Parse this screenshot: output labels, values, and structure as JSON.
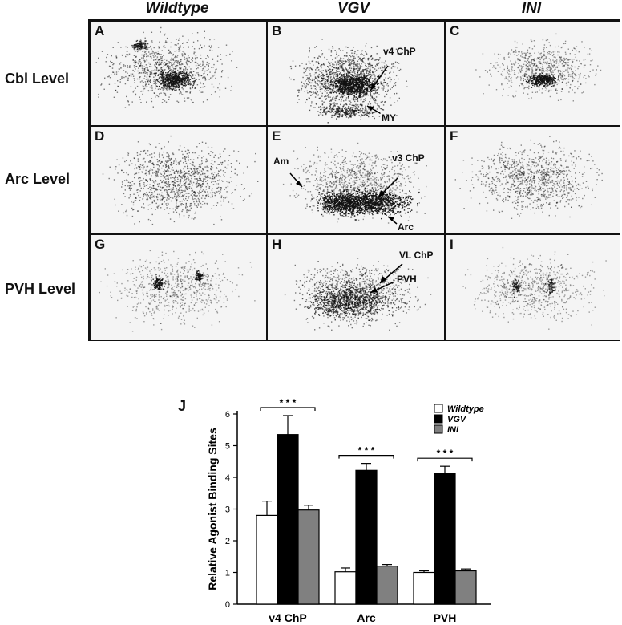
{
  "columns": [
    "Wildtype",
    "VGV",
    "INI"
  ],
  "rows": [
    "Cbl Level",
    "Arc Level",
    "PVH Level"
  ],
  "panels": [
    {
      "letter": "A",
      "annotations": []
    },
    {
      "letter": "B",
      "annotations": [
        "v4 ChP",
        "MY"
      ]
    },
    {
      "letter": "C",
      "annotations": []
    },
    {
      "letter": "D",
      "annotations": []
    },
    {
      "letter": "E",
      "annotations": [
        "Am",
        "v3 ChP",
        "Arc"
      ]
    },
    {
      "letter": "F",
      "annotations": []
    },
    {
      "letter": "G",
      "annotations": []
    },
    {
      "letter": "H",
      "annotations": [
        "VL ChP",
        "PVH"
      ]
    },
    {
      "letter": "I",
      "annotations": []
    }
  ],
  "chart_label": "J",
  "chart_data": {
    "type": "bar",
    "ylabel": "Relative Agonist Binding Sites",
    "xlabel": "",
    "ylim": [
      0,
      6
    ],
    "yticks": [
      "0",
      "1",
      "2",
      "3",
      "4",
      "5",
      "6"
    ],
    "categories": [
      "v4 ChP",
      "Arc",
      "PVH"
    ],
    "series": [
      {
        "name": "Wildtype",
        "values": [
          2.8,
          1.02,
          1.0
        ],
        "errors": [
          0.45,
          0.12,
          0.05
        ],
        "color": "#ffffff"
      },
      {
        "name": "VGV",
        "values": [
          5.35,
          4.22,
          4.13
        ],
        "errors": [
          0.6,
          0.22,
          0.22
        ],
        "color": "#000000"
      },
      {
        "name": "INI",
        "values": [
          2.97,
          1.2,
          1.05
        ],
        "errors": [
          0.15,
          0.05,
          0.06
        ],
        "color": "#808080"
      }
    ],
    "significance_marks": "* * *",
    "legend_position": "top-right",
    "grid": false
  }
}
